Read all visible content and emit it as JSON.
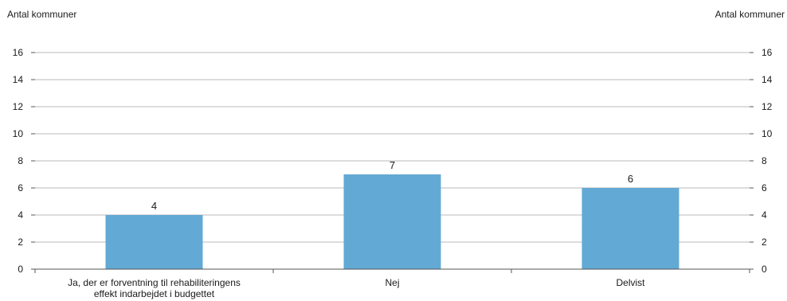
{
  "chart_data": {
    "type": "bar",
    "categories": [
      "Ja, der er forventning til rehabiliteringens effekt indarbejdet i budgettet",
      "Nej",
      "Delvist"
    ],
    "values": [
      4,
      7,
      6
    ],
    "data_labels": [
      "4",
      "7",
      "6"
    ],
    "ylabel": "Antal kommuner",
    "ylabel_right": "Antal kommuner",
    "ylim": [
      0,
      16
    ],
    "yticks": [
      0,
      2,
      4,
      6,
      8,
      10,
      12,
      14,
      16
    ],
    "grid": true,
    "colors": {
      "bar": "#63a9d5",
      "grid": "#b8b8b8",
      "axis": "#555555"
    }
  }
}
